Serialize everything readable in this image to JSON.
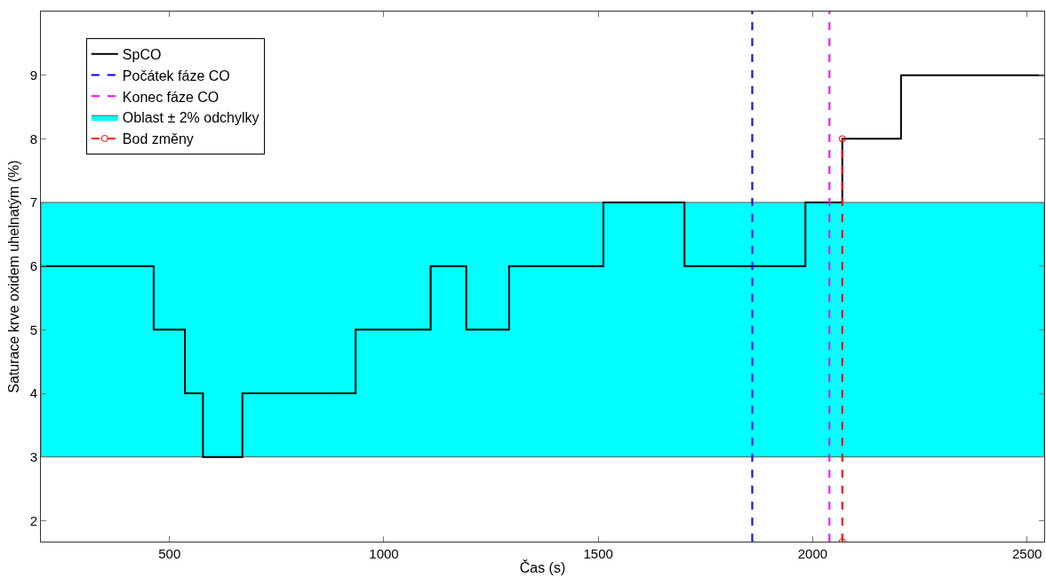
{
  "chart_data": {
    "type": "step",
    "xlabel": "Čas (s)",
    "ylabel": "Saturace krve oxidem uhelnatým (%)",
    "xlim": [
      200,
      2540
    ],
    "ylim": [
      1.67,
      10
    ],
    "xticks": [
      500,
      1000,
      1500,
      2000,
      2500
    ],
    "yticks": [
      2,
      3,
      4,
      5,
      6,
      7,
      8,
      9
    ],
    "legend": "top left",
    "series": [
      {
        "name": "SpCO",
        "color": "#000000",
        "x": [
          200,
          463,
          536,
          578,
          670,
          934,
          1109,
          1192,
          1292,
          1512,
          1701,
          1983,
          2069,
          2206,
          2540
        ],
        "values": [
          6,
          5,
          4,
          3,
          4,
          5,
          6,
          5,
          6,
          7,
          6,
          7,
          8,
          9,
          9
        ]
      },
      {
        "name": "Počátek fáze CO",
        "type": "line",
        "color": "#0000ff",
        "line_style": "dashed",
        "x": [
          1859,
          1859
        ],
        "values": [
          1.67,
          10
        ]
      },
      {
        "name": "Konec fáze CO",
        "type": "line",
        "color": "#ff00ff",
        "line_style": "dashed",
        "x": [
          2039,
          2039
        ],
        "values": [
          1.67,
          10
        ]
      },
      {
        "name": "Bod změny",
        "type": "line",
        "color": "#ff0000",
        "line_style": "dashed",
        "marker": "circle",
        "x": [
          2069,
          2069
        ],
        "values": [
          1.67,
          8
        ]
      }
    ],
    "bands": [
      {
        "axis": "y",
        "from": 3,
        "to": 7,
        "label": "Oblast ± 2% odchylky",
        "color": "#00ffff"
      }
    ]
  }
}
